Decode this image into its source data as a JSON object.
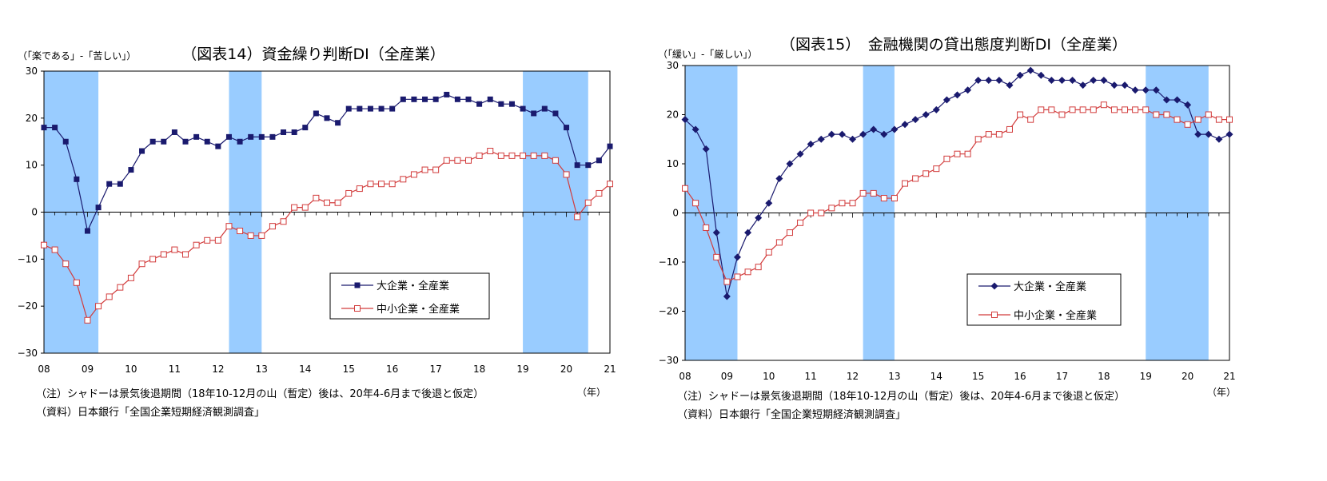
{
  "chart_data": [
    {
      "type": "line",
      "title": "（図表14）資金繰り判断DI（全産業）",
      "ylabel": "（「楽である」-「苦しい」）",
      "xlabel": "（年）",
      "ylim": [
        -30,
        30
      ],
      "yticks": [
        "30",
        "20",
        "10",
        "0",
        "−10",
        "−20",
        "−30"
      ],
      "x_tick_labels": [
        "08",
        "09",
        "10",
        "11",
        "12",
        "13",
        "14",
        "15",
        "16",
        "17",
        "18",
        "19",
        "20",
        "21"
      ],
      "x_start": 2008.0,
      "x_step": 0.25,
      "shaded_periods": [
        [
          2008.0,
          2009.25
        ],
        [
          2012.25,
          2013.0
        ],
        [
          2019.0,
          2020.5
        ]
      ],
      "legend_position": "lower-right",
      "series": [
        {
          "name": "大企業・全産業",
          "marker": "filled-square",
          "color": "#1a1a6e",
          "values": [
            18,
            18,
            15,
            7,
            -4,
            1,
            6,
            6,
            9,
            13,
            15,
            15,
            17,
            15,
            16,
            15,
            14,
            16,
            15,
            16,
            16,
            16,
            17,
            17,
            18,
            21,
            20,
            19,
            22,
            22,
            22,
            22,
            22,
            24,
            24,
            24,
            24,
            25,
            24,
            24,
            23,
            24,
            23,
            23,
            22,
            21,
            22,
            21,
            18,
            10,
            10,
            11,
            14
          ]
        },
        {
          "name": "中小企業・全産業",
          "marker": "open-square",
          "color": "#d23c3c",
          "values": [
            -7,
            -8,
            -11,
            -15,
            -23,
            -20,
            -18,
            -16,
            -14,
            -11,
            -10,
            -9,
            -8,
            -9,
            -7,
            -6,
            -6,
            -3,
            -4,
            -5,
            -5,
            -3,
            -2,
            1,
            1,
            3,
            2,
            2,
            4,
            5,
            6,
            6,
            6,
            7,
            8,
            9,
            9,
            11,
            11,
            11,
            12,
            13,
            12,
            12,
            12,
            12,
            12,
            11,
            8,
            -1,
            2,
            4,
            6
          ]
        }
      ]
    },
    {
      "type": "line",
      "title": "（図表15）　金融機関の貸出態度判断DI（全産業）",
      "ylabel": "（「緩い」-「厳しい」）",
      "xlabel": "（年）",
      "ylim": [
        -30,
        30
      ],
      "yticks": [
        "30",
        "20",
        "10",
        "0",
        "−10",
        "−20",
        "−30"
      ],
      "x_tick_labels": [
        "08",
        "09",
        "10",
        "11",
        "12",
        "13",
        "14",
        "15",
        "16",
        "17",
        "18",
        "19",
        "20",
        "21"
      ],
      "x_start": 2008.0,
      "x_step": 0.25,
      "shaded_periods": [
        [
          2008.0,
          2009.25
        ],
        [
          2012.25,
          2013.0
        ],
        [
          2019.0,
          2020.5
        ]
      ],
      "legend_position": "center-left",
      "series": [
        {
          "name": "大企業・全産業",
          "marker": "filled-diamond",
          "color": "#1a1a6e",
          "values": [
            19,
            17,
            13,
            -4,
            -17,
            -9,
            -4,
            -1,
            2,
            7,
            10,
            12,
            14,
            15,
            16,
            16,
            15,
            16,
            17,
            16,
            17,
            18,
            19,
            20,
            21,
            23,
            24,
            25,
            27,
            27,
            27,
            26,
            28,
            29,
            28,
            27,
            27,
            27,
            26,
            27,
            27,
            26,
            26,
            25,
            25,
            25,
            23,
            23,
            22,
            16,
            16,
            15,
            16
          ]
        },
        {
          "name": "中小企業・全産業",
          "marker": "open-square",
          "color": "#d23c3c",
          "values": [
            5,
            2,
            -3,
            -9,
            -14,
            -13,
            -12,
            -11,
            -8,
            -6,
            -4,
            -2,
            0,
            0,
            1,
            2,
            2,
            4,
            4,
            3,
            3,
            6,
            7,
            8,
            9,
            11,
            12,
            12,
            15,
            16,
            16,
            17,
            20,
            19,
            21,
            21,
            20,
            21,
            21,
            21,
            22,
            21,
            21,
            21,
            21,
            20,
            20,
            19,
            18,
            19,
            20,
            19,
            19
          ]
        }
      ]
    }
  ],
  "notes": {
    "left": [
      "（注）シャドーは景気後退期間（18年10-12月の山（暫定）後は、20年4-6月まで後退と仮定）",
      "（資料）日本銀行「全国企業短期経済観測調査」"
    ],
    "right": [
      "（注）シャドーは景気後退期間（18年10-12月の山（暫定）後は、20年4-6月まで後退と仮定）",
      "（資料）日本銀行「全国企業短期経済観測調査」"
    ]
  }
}
